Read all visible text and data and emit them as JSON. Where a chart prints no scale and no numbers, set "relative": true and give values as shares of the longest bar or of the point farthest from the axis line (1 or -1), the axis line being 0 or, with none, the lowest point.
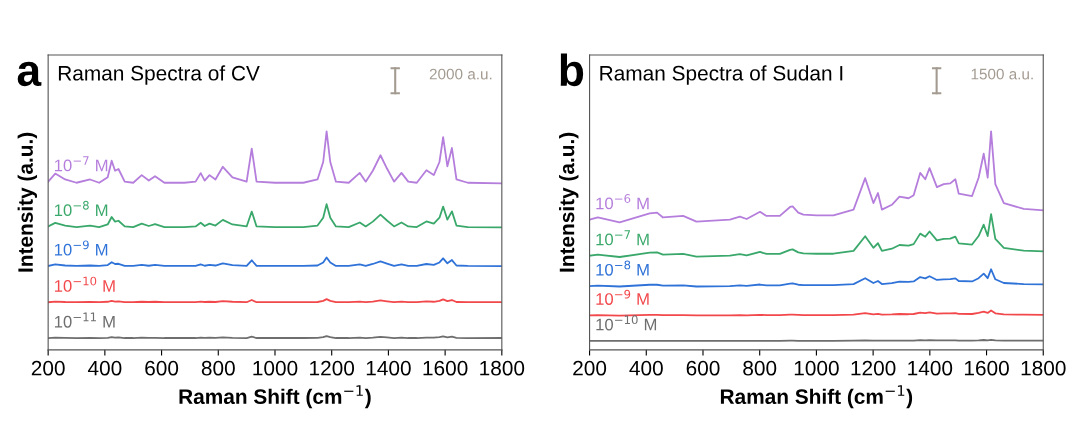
{
  "chart_data": [
    {
      "type": "line",
      "title": "Raman Spectra of CV",
      "xlabel": "Raman Shift (cm$^{−1}$)",
      "ylabel": "Intensity (a.u.)",
      "relative": true,
      "annotations": [
        "a",
        "2000 a.u."
      ],
      "xlim": [
        200,
        1800
      ],
      "xticks": [
        200,
        400,
        600,
        800,
        1000,
        1200,
        1400,
        1600,
        1800
      ],
      "grid": false,
      "legend": false,
      "tick_labels": "x",
      "x": [
        200,
        225,
        260,
        300,
        348,
        380,
        410,
        424,
        436,
        448,
        470,
        500,
        530,
        555,
        577,
        610,
        680,
        720,
        738,
        752,
        769,
        790,
        816,
        850,
        900,
        918,
        935,
        1000,
        1100,
        1150,
        1170,
        1182,
        1195,
        1215,
        1260,
        1299,
        1320,
        1345,
        1372,
        1395,
        1420,
        1446,
        1470,
        1500,
        1534,
        1560,
        1580,
        1593,
        1608,
        1624,
        1640,
        1680,
        1800
      ],
      "series": [
        {
          "name": "10$^{−7}$ M",
          "color": "#b57edc",
          "values": [
            0.77,
            0.807,
            0.78,
            0.765,
            0.78,
            0.765,
            0.79,
            0.866,
            0.82,
            0.828,
            0.77,
            0.765,
            0.8,
            0.775,
            0.795,
            0.765,
            0.765,
            0.77,
            0.809,
            0.775,
            0.8,
            0.78,
            0.838,
            0.79,
            0.77,
            0.921,
            0.77,
            0.765,
            0.765,
            0.78,
            0.86,
            1.0,
            0.86,
            0.77,
            0.765,
            0.81,
            0.77,
            0.82,
            0.891,
            0.83,
            0.77,
            0.81,
            0.77,
            0.765,
            0.822,
            0.8,
            0.86,
            0.974,
            0.84,
            0.924,
            0.78,
            0.765,
            0.762
          ]
        },
        {
          "name": "10$^{−8}$ M",
          "color": "#3aa86b",
          "values": [
            0.565,
            0.581,
            0.569,
            0.562,
            0.569,
            0.562,
            0.574,
            0.608,
            0.587,
            0.591,
            0.565,
            0.562,
            0.578,
            0.567,
            0.576,
            0.562,
            0.562,
            0.565,
            0.582,
            0.567,
            0.578,
            0.569,
            0.595,
            0.574,
            0.565,
            0.633,
            0.565,
            0.562,
            0.562,
            0.569,
            0.605,
            0.667,
            0.605,
            0.565,
            0.562,
            0.583,
            0.565,
            0.587,
            0.619,
            0.592,
            0.565,
            0.583,
            0.565,
            0.562,
            0.588,
            0.578,
            0.605,
            0.656,
            0.596,
            0.634,
            0.569,
            0.562,
            0.561
          ]
        },
        {
          "name": "10$^{−9}$ M",
          "color": "#2f72d8",
          "values": [
            0.384,
            0.391,
            0.386,
            0.384,
            0.386,
            0.384,
            0.388,
            0.401,
            0.393,
            0.394,
            0.384,
            0.384,
            0.389,
            0.385,
            0.389,
            0.384,
            0.384,
            0.384,
            0.391,
            0.385,
            0.389,
            0.386,
            0.396,
            0.388,
            0.384,
            0.41,
            0.384,
            0.384,
            0.384,
            0.386,
            0.4,
            0.423,
            0.4,
            0.384,
            0.384,
            0.391,
            0.384,
            0.393,
            0.405,
            0.395,
            0.384,
            0.391,
            0.384,
            0.384,
            0.393,
            0.389,
            0.4,
            0.419,
            0.396,
            0.411,
            0.386,
            0.384,
            0.383
          ]
        },
        {
          "name": "10$^{−10}$ M",
          "color": "#f2484b",
          "values": [
            0.218,
            0.221,
            0.219,
            0.218,
            0.219,
            0.218,
            0.22,
            0.224,
            0.221,
            0.222,
            0.218,
            0.218,
            0.22,
            0.219,
            0.22,
            0.218,
            0.218,
            0.218,
            0.221,
            0.219,
            0.22,
            0.219,
            0.223,
            0.22,
            0.218,
            0.228,
            0.218,
            0.218,
            0.218,
            0.219,
            0.224,
            0.232,
            0.224,
            0.218,
            0.218,
            0.221,
            0.218,
            0.221,
            0.226,
            0.222,
            0.218,
            0.221,
            0.218,
            0.218,
            0.222,
            0.22,
            0.224,
            0.231,
            0.223,
            0.228,
            0.219,
            0.218,
            0.218
          ]
        },
        {
          "name": "10$^{−11}$ M",
          "color": "#6e6e6e",
          "values": [
            0.054,
            0.056,
            0.055,
            0.054,
            0.055,
            0.054,
            0.055,
            0.058,
            0.056,
            0.057,
            0.054,
            0.054,
            0.056,
            0.055,
            0.055,
            0.054,
            0.054,
            0.054,
            0.056,
            0.055,
            0.056,
            0.055,
            0.057,
            0.055,
            0.054,
            0.06,
            0.054,
            0.054,
            0.054,
            0.055,
            0.058,
            0.063,
            0.058,
            0.054,
            0.054,
            0.056,
            0.054,
            0.056,
            0.059,
            0.057,
            0.054,
            0.056,
            0.054,
            0.054,
            0.056,
            0.056,
            0.058,
            0.062,
            0.057,
            0.06,
            0.055,
            0.054,
            0.054
          ]
        }
      ]
    },
    {
      "type": "line",
      "title": "Raman Spectra of Sudan I",
      "xlabel": "Raman Shift (cm$^{−1}$)",
      "ylabel": "Intensity (a.u.)",
      "relative": true,
      "annotations": [
        "b",
        "1500 a.u."
      ],
      "xlim": [
        200,
        1800
      ],
      "xticks": [
        200,
        400,
        600,
        800,
        1000,
        1200,
        1400,
        1600,
        1800
      ],
      "grid": false,
      "legend": false,
      "tick_labels": "x",
      "x": [
        200,
        229,
        306,
        412,
        438,
        459,
        530,
        577,
        695,
        730,
        754,
        801,
        824,
        871,
        907,
        916,
        936,
        954,
        1001,
        1060,
        1131,
        1172,
        1201,
        1217,
        1231,
        1266,
        1293,
        1325,
        1343,
        1366,
        1384,
        1399,
        1425,
        1449,
        1472,
        1490,
        1502,
        1549,
        1572,
        1590,
        1604,
        1616,
        1631,
        1661,
        1731,
        1800
      ],
      "series": [
        {
          "name": "10$^{−6}$ M",
          "color": "#b57edc",
          "values": [
            0.596,
            0.606,
            0.584,
            0.625,
            0.628,
            0.606,
            0.613,
            0.587,
            0.596,
            0.61,
            0.599,
            0.632,
            0.613,
            0.613,
            0.654,
            0.657,
            0.628,
            0.619,
            0.616,
            0.616,
            0.642,
            0.786,
            0.672,
            0.718,
            0.642,
            0.664,
            0.701,
            0.694,
            0.708,
            0.81,
            0.781,
            0.832,
            0.745,
            0.759,
            0.762,
            0.781,
            0.715,
            0.704,
            0.788,
            0.898,
            0.788,
            1.0,
            0.759,
            0.672,
            0.645,
            0.639
          ]
        },
        {
          "name": "10$^{−7}$ M",
          "color": "#3aa86b",
          "values": [
            0.431,
            0.436,
            0.425,
            0.445,
            0.446,
            0.436,
            0.439,
            0.427,
            0.431,
            0.438,
            0.432,
            0.448,
            0.439,
            0.439,
            0.458,
            0.46,
            0.446,
            0.442,
            0.44,
            0.44,
            0.453,
            0.52,
            0.467,
            0.488,
            0.453,
            0.463,
            0.48,
            0.477,
            0.484,
            0.532,
            0.518,
            0.542,
            0.501,
            0.508,
            0.509,
            0.518,
            0.487,
            0.482,
            0.521,
            0.573,
            0.521,
            0.621,
            0.508,
            0.467,
            0.454,
            0.451
          ]
        },
        {
          "name": "10$^{−8}$ M",
          "color": "#2f72d8",
          "values": [
            0.292,
            0.294,
            0.29,
            0.298,
            0.298,
            0.294,
            0.295,
            0.29,
            0.292,
            0.295,
            0.293,
            0.299,
            0.295,
            0.295,
            0.303,
            0.304,
            0.298,
            0.296,
            0.296,
            0.296,
            0.301,
            0.328,
            0.306,
            0.315,
            0.301,
            0.305,
            0.312,
            0.311,
            0.313,
            0.333,
            0.327,
            0.337,
            0.32,
            0.323,
            0.324,
            0.327,
            0.315,
            0.313,
            0.328,
            0.349,
            0.328,
            0.369,
            0.323,
            0.306,
            0.301,
            0.3
          ]
        },
        {
          "name": "10$^{−9}$ M",
          "color": "#f2484b",
          "values": [
            0.158,
            0.159,
            0.157,
            0.16,
            0.16,
            0.159,
            0.159,
            0.158,
            0.158,
            0.159,
            0.158,
            0.16,
            0.159,
            0.159,
            0.161,
            0.161,
            0.16,
            0.159,
            0.159,
            0.159,
            0.161,
            0.168,
            0.162,
            0.165,
            0.161,
            0.162,
            0.164,
            0.163,
            0.164,
            0.17,
            0.168,
            0.171,
            0.166,
            0.167,
            0.167,
            0.168,
            0.165,
            0.164,
            0.169,
            0.175,
            0.169,
            0.18,
            0.167,
            0.162,
            0.161,
            0.16
          ]
        },
        {
          "name": "10$^{−10}$ M",
          "color": "#6e6e6e",
          "values": [
            0.041,
            0.041,
            0.041,
            0.041,
            0.041,
            0.041,
            0.041,
            0.041,
            0.041,
            0.041,
            0.041,
            0.041,
            0.041,
            0.041,
            0.042,
            0.042,
            0.041,
            0.041,
            0.041,
            0.041,
            0.042,
            0.043,
            0.042,
            0.042,
            0.042,
            0.042,
            0.042,
            0.042,
            0.042,
            0.044,
            0.043,
            0.044,
            0.043,
            0.043,
            0.043,
            0.043,
            0.042,
            0.042,
            0.043,
            0.045,
            0.043,
            0.046,
            0.043,
            0.042,
            0.042,
            0.042
          ]
        }
      ]
    }
  ]
}
